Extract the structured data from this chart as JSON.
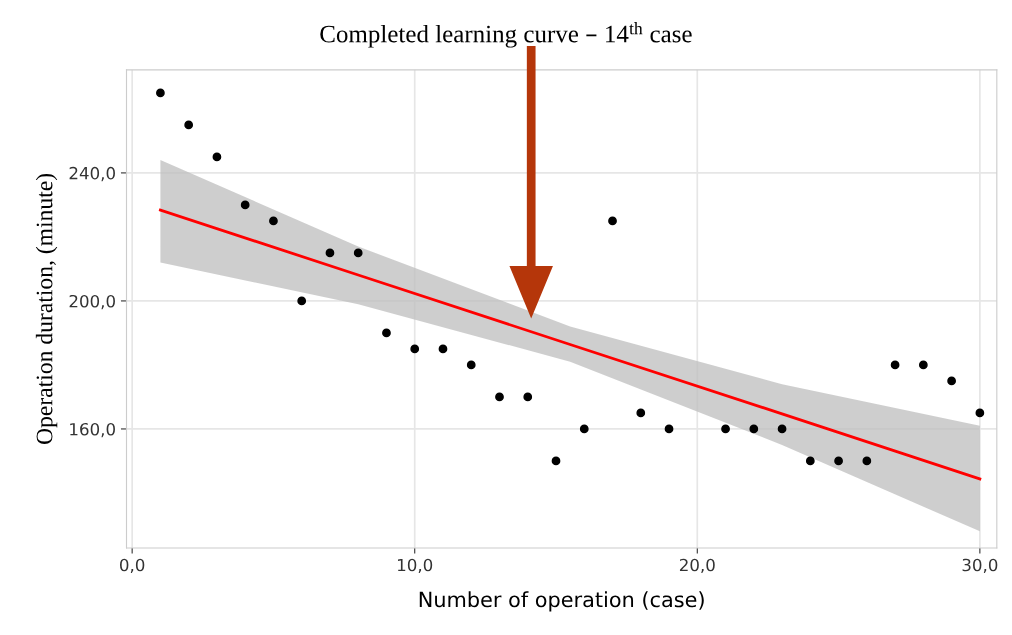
{
  "chart_data": {
    "type": "scatter",
    "title": "Completed learning curve – 14$^{th}$ case",
    "xlabel": "Number of operation (case)",
    "ylabel": "Operation duration, (minute)",
    "series": [
      {
        "color": "#000000",
        "marker": "circle",
        "x": [
          1,
          2,
          3,
          4,
          5,
          6,
          7,
          8,
          9,
          10,
          11,
          12,
          13,
          14,
          15,
          16,
          17,
          18,
          19,
          21,
          22,
          23,
          24,
          25,
          26,
          27,
          28,
          29,
          30
        ],
        "values": [
          265,
          255,
          245,
          230,
          225,
          200,
          215,
          215,
          190,
          185,
          185,
          180,
          170,
          170,
          150,
          160,
          225,
          165,
          160,
          160,
          160,
          160,
          150,
          150,
          150,
          180,
          180,
          175,
          165
        ]
      },
      {
        "type": "line",
        "color": "#ff0000",
        "x": [
          1,
          8,
          15.5,
          23,
          30
        ],
        "values": [
          228.4,
          208.1,
          186.4,
          164.7,
          144.4
        ],
        "lower": [
          212,
          199,
          181,
          155,
          128
        ],
        "upper": [
          244,
          217,
          192,
          174,
          161
        ]
      }
    ],
    "xlim": [
      -0.2,
      30.6
    ],
    "ylim": [
      122.8,
      272.2
    ],
    "xticks": [
      {
        "value": 0,
        "label": "0,0"
      },
      {
        "value": 10,
        "label": "10,0"
      },
      {
        "value": 20,
        "label": "20,0"
      },
      {
        "value": 30,
        "label": "30,0"
      }
    ],
    "yticks": [
      {
        "value": 160,
        "label": "160,0"
      },
      {
        "value": 200,
        "label": "200,0"
      },
      {
        "value": 240,
        "label": "240,0"
      }
    ],
    "grid": true
  }
}
